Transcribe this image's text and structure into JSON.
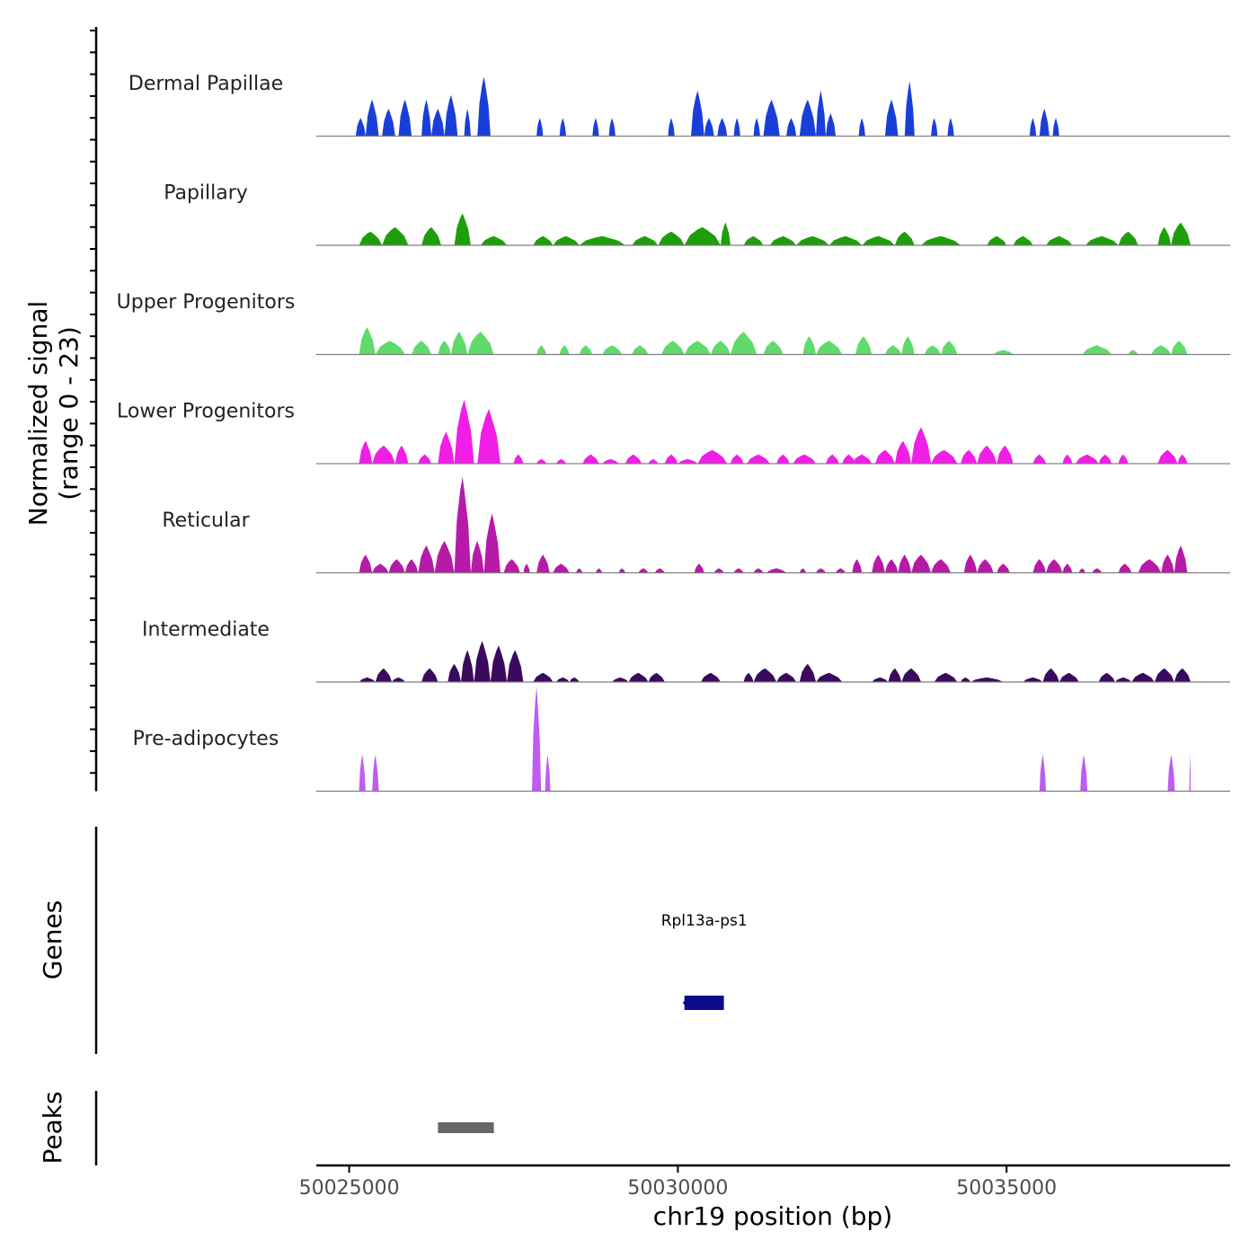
{
  "chart_data": {
    "type": "area",
    "y_axis_title_line1": "Normalized signal",
    "y_axis_title_line2": "(range 0 - 23)",
    "ylim": [
      0,
      23
    ],
    "xlabel": "chr19 position (bp)",
    "xlim": [
      50024500,
      50038400
    ],
    "x_ticks": [
      {
        "value": 50025000,
        "label": "50025000"
      },
      {
        "value": 50030000,
        "label": "50030000"
      },
      {
        "value": 50035000,
        "label": "50035000"
      }
    ],
    "series": [
      {
        "name": "Dermal Papillae",
        "color": "#1a3fd9",
        "peaks": [
          [
            50025100,
            50025250,
            4
          ],
          [
            50025250,
            50025450,
            8
          ],
          [
            50025500,
            50025700,
            6
          ],
          [
            50025750,
            50025950,
            8
          ],
          [
            50026100,
            50026250,
            8
          ],
          [
            50026250,
            50026450,
            6
          ],
          [
            50026450,
            50026650,
            9
          ],
          [
            50026750,
            50026850,
            6
          ],
          [
            50026950,
            50027150,
            13
          ],
          [
            50027850,
            50027950,
            4
          ],
          [
            50028200,
            50028300,
            4
          ],
          [
            50028700,
            50028800,
            4
          ],
          [
            50028950,
            50029050,
            4
          ],
          [
            50029850,
            50029950,
            4
          ],
          [
            50030200,
            50030400,
            10
          ],
          [
            50030400,
            50030550,
            4
          ],
          [
            50030600,
            50030750,
            4
          ],
          [
            50030850,
            50030950,
            4
          ],
          [
            50031150,
            50031250,
            4
          ],
          [
            50031300,
            50031550,
            8
          ],
          [
            50031650,
            50031800,
            4
          ],
          [
            50031850,
            50032100,
            8
          ],
          [
            50032100,
            50032250,
            10
          ],
          [
            50032250,
            50032400,
            5
          ],
          [
            50032750,
            50032850,
            4
          ],
          [
            50033150,
            50033350,
            8
          ],
          [
            50033450,
            50033600,
            12
          ],
          [
            50033850,
            50033950,
            4
          ],
          [
            50034100,
            50034200,
            4
          ],
          [
            50035350,
            50035450,
            4
          ],
          [
            50035500,
            50035650,
            6
          ],
          [
            50035700,
            50035800,
            4
          ]
        ]
      },
      {
        "name": "Papillary",
        "color": "#1e9e0a",
        "peaks": [
          [
            50025150,
            50025500,
            3
          ],
          [
            50025500,
            50025900,
            4
          ],
          [
            50026100,
            50026400,
            4
          ],
          [
            50026600,
            50026850,
            7
          ],
          [
            50027000,
            50027400,
            2
          ],
          [
            50027800,
            50028100,
            2
          ],
          [
            50028100,
            50028500,
            2
          ],
          [
            50028500,
            50029200,
            2
          ],
          [
            50029300,
            50029700,
            2
          ],
          [
            50029700,
            50030100,
            3
          ],
          [
            50030100,
            50030650,
            4
          ],
          [
            50030650,
            50030800,
            5
          ],
          [
            50031000,
            50031300,
            2
          ],
          [
            50031400,
            50031800,
            2
          ],
          [
            50031800,
            50032300,
            2
          ],
          [
            50032300,
            50032800,
            2
          ],
          [
            50032800,
            50033300,
            2
          ],
          [
            50033300,
            50033600,
            3
          ],
          [
            50033700,
            50034300,
            2
          ],
          [
            50034700,
            50035000,
            2
          ],
          [
            50035100,
            50035400,
            2
          ],
          [
            50035600,
            50036000,
            2
          ],
          [
            50036200,
            50036700,
            2
          ],
          [
            50036700,
            50037000,
            3
          ],
          [
            50037300,
            50037500,
            4
          ],
          [
            50037500,
            50037800,
            5
          ]
        ]
      },
      {
        "name": "Upper Progenitors",
        "color": "#5edb6a",
        "peaks": [
          [
            50025150,
            50025400,
            6
          ],
          [
            50025400,
            50025850,
            3
          ],
          [
            50025950,
            50026250,
            3
          ],
          [
            50026350,
            50026550,
            3
          ],
          [
            50026550,
            50026800,
            5
          ],
          [
            50026800,
            50027200,
            5
          ],
          [
            50027850,
            50028000,
            2
          ],
          [
            50028200,
            50028350,
            2
          ],
          [
            50028500,
            50028700,
            2
          ],
          [
            50028850,
            50029150,
            2
          ],
          [
            50029300,
            50029550,
            2
          ],
          [
            50029750,
            50030100,
            3
          ],
          [
            50030100,
            50030500,
            3
          ],
          [
            50030500,
            50030800,
            3
          ],
          [
            50030800,
            50031200,
            5
          ],
          [
            50031300,
            50031600,
            3
          ],
          [
            50031900,
            50032100,
            4
          ],
          [
            50032100,
            50032500,
            3
          ],
          [
            50032700,
            50032950,
            4
          ],
          [
            50033150,
            50033400,
            2
          ],
          [
            50033400,
            50033600,
            4
          ],
          [
            50033750,
            50034000,
            2
          ],
          [
            50034000,
            50034250,
            3
          ],
          [
            50034800,
            50035100,
            1
          ],
          [
            50036150,
            50036600,
            2
          ],
          [
            50036850,
            50037000,
            1
          ],
          [
            50037200,
            50037500,
            2
          ],
          [
            50037500,
            50037750,
            3
          ]
        ]
      },
      {
        "name": "Lower Progenitors",
        "color": "#f01ee6",
        "peaks": [
          [
            50025150,
            50025350,
            5
          ],
          [
            50025350,
            50025700,
            4
          ],
          [
            50025700,
            50025900,
            4
          ],
          [
            50026050,
            50026250,
            2
          ],
          [
            50026350,
            50026600,
            7
          ],
          [
            50026600,
            50026900,
            14
          ],
          [
            50026950,
            50027300,
            12
          ],
          [
            50027500,
            50027650,
            2
          ],
          [
            50027850,
            50028000,
            1
          ],
          [
            50028150,
            50028300,
            1
          ],
          [
            50028550,
            50028800,
            2
          ],
          [
            50028850,
            50029100,
            1
          ],
          [
            50029200,
            50029450,
            2
          ],
          [
            50029550,
            50029700,
            1
          ],
          [
            50029800,
            50030000,
            2
          ],
          [
            50030000,
            50030300,
            1
          ],
          [
            50030300,
            50030750,
            3
          ],
          [
            50030800,
            50031000,
            2
          ],
          [
            50031050,
            50031400,
            2
          ],
          [
            50031500,
            50031700,
            2
          ],
          [
            50031750,
            50032100,
            2
          ],
          [
            50032250,
            50032450,
            2
          ],
          [
            50032500,
            50032700,
            2
          ],
          [
            50032650,
            50032950,
            2
          ],
          [
            50033000,
            50033300,
            3
          ],
          [
            50033300,
            50033550,
            5
          ],
          [
            50033550,
            50033850,
            8
          ],
          [
            50033850,
            50034250,
            3
          ],
          [
            50034300,
            50034550,
            3
          ],
          [
            50034550,
            50034850,
            4
          ],
          [
            50034850,
            50035100,
            4
          ],
          [
            50035400,
            50035600,
            2
          ],
          [
            50035850,
            50036000,
            2
          ],
          [
            50036050,
            50036400,
            2
          ],
          [
            50036400,
            50036600,
            2
          ],
          [
            50036700,
            50036850,
            2
          ],
          [
            50037300,
            50037600,
            3
          ],
          [
            50037600,
            50037750,
            2
          ]
        ]
      },
      {
        "name": "Reticular",
        "color": "#b81aa8",
        "peaks": [
          [
            50025150,
            50025350,
            4
          ],
          [
            50025350,
            50025600,
            2
          ],
          [
            50025600,
            50025850,
            3
          ],
          [
            50025850,
            50026050,
            3
          ],
          [
            50026050,
            50026300,
            6
          ],
          [
            50026300,
            50026600,
            7
          ],
          [
            50026600,
            50026850,
            21
          ],
          [
            50026850,
            50027050,
            7
          ],
          [
            50027050,
            50027300,
            13
          ],
          [
            50027350,
            50027600,
            3
          ],
          [
            50027650,
            50027750,
            2
          ],
          [
            50027850,
            50028050,
            4
          ],
          [
            50028100,
            50028350,
            2
          ],
          [
            50028450,
            50028550,
            1
          ],
          [
            50028750,
            50028850,
            1
          ],
          [
            50029100,
            50029200,
            1
          ],
          [
            50029400,
            50029550,
            1
          ],
          [
            50029650,
            50029800,
            1
          ],
          [
            50030250,
            50030400,
            2
          ],
          [
            50030550,
            50030700,
            1
          ],
          [
            50030850,
            50031000,
            1
          ],
          [
            50031150,
            50031300,
            1
          ],
          [
            50031350,
            50031650,
            1
          ],
          [
            50031850,
            50031950,
            1
          ],
          [
            50032100,
            50032250,
            1
          ],
          [
            50032400,
            50032550,
            1
          ],
          [
            50032650,
            50032800,
            3
          ],
          [
            50032950,
            50033150,
            4
          ],
          [
            50033150,
            50033350,
            3
          ],
          [
            50033350,
            50033550,
            4
          ],
          [
            50033550,
            50033850,
            4
          ],
          [
            50033850,
            50034150,
            3
          ],
          [
            50034350,
            50034550,
            4
          ],
          [
            50034550,
            50034800,
            3
          ],
          [
            50034850,
            50035050,
            2
          ],
          [
            50035400,
            50035600,
            3
          ],
          [
            50035600,
            50035850,
            3
          ],
          [
            50035850,
            50036000,
            2
          ],
          [
            50036100,
            50036200,
            1
          ],
          [
            50036300,
            50036450,
            1
          ],
          [
            50036700,
            50036900,
            2
          ],
          [
            50037000,
            50037350,
            3
          ],
          [
            50037350,
            50037550,
            4
          ],
          [
            50037550,
            50037750,
            6
          ]
        ]
      },
      {
        "name": "Intermediate",
        "color": "#3a0a5e",
        "peaks": [
          [
            50025150,
            50025400,
            1
          ],
          [
            50025400,
            50025650,
            3
          ],
          [
            50025650,
            50025850,
            1
          ],
          [
            50026100,
            50026350,
            3
          ],
          [
            50026500,
            50026700,
            4
          ],
          [
            50026700,
            50026900,
            7
          ],
          [
            50026900,
            50027150,
            9
          ],
          [
            50027150,
            50027400,
            8
          ],
          [
            50027400,
            50027650,
            7
          ],
          [
            50027800,
            50028100,
            2
          ],
          [
            50028150,
            50028350,
            1
          ],
          [
            50028350,
            50028500,
            1
          ],
          [
            50029000,
            50029250,
            1
          ],
          [
            50029250,
            50029550,
            2
          ],
          [
            50029550,
            50029800,
            2
          ],
          [
            50030350,
            50030650,
            2
          ],
          [
            50031000,
            50031150,
            2
          ],
          [
            50031150,
            50031500,
            3
          ],
          [
            50031500,
            50031800,
            2
          ],
          [
            50031850,
            50032100,
            4
          ],
          [
            50032100,
            50032500,
            2
          ],
          [
            50032950,
            50033200,
            1
          ],
          [
            50033200,
            50033400,
            3
          ],
          [
            50033400,
            50033700,
            3
          ],
          [
            50033900,
            50034250,
            2
          ],
          [
            50034300,
            50034450,
            1
          ],
          [
            50034450,
            50034950,
            1
          ],
          [
            50035250,
            50035550,
            1
          ],
          [
            50035550,
            50035800,
            3
          ],
          [
            50035800,
            50036100,
            2
          ],
          [
            50036400,
            50036650,
            2
          ],
          [
            50036650,
            50036900,
            1
          ],
          [
            50036900,
            50037250,
            2
          ],
          [
            50037250,
            50037550,
            3
          ],
          [
            50037550,
            50037800,
            3
          ]
        ]
      },
      {
        "name": "Pre-adipocytes",
        "color": "#bf5cf2",
        "peaks": [
          [
            50025150,
            50025250,
            8
          ],
          [
            50025350,
            50025450,
            8
          ],
          [
            50027780,
            50027920,
            23
          ],
          [
            50027980,
            50028060,
            8
          ],
          [
            50035500,
            50035600,
            8
          ],
          [
            50036120,
            50036230,
            8
          ],
          [
            50037450,
            50037560,
            8
          ],
          [
            50037780,
            50037800,
            8
          ]
        ]
      }
    ]
  },
  "genes_track": {
    "title": "Genes",
    "genes": [
      {
        "name": "Rpl13a-ps1",
        "start": 50030100,
        "end": 50030700,
        "strand": "-",
        "color": "#0a0a8a"
      }
    ]
  },
  "peaks_track": {
    "title": "Peaks",
    "peaks": [
      {
        "start": 50026350,
        "end": 50027200,
        "color": "#666666"
      }
    ]
  }
}
